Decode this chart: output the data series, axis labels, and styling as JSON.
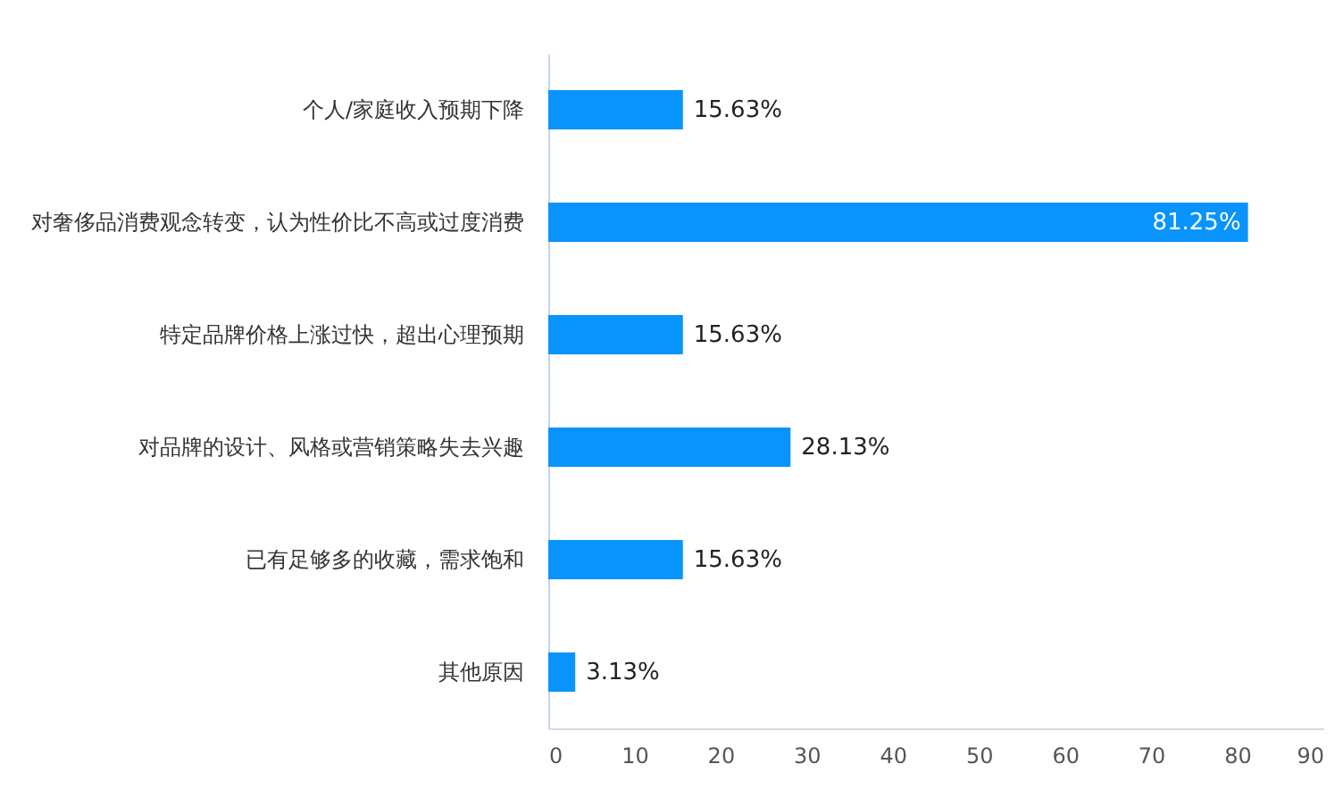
{
  "chart_data": {
    "type": "bar",
    "orientation": "horizontal",
    "categories": [
      "个人/家庭收入预期下降",
      "对奢侈品消费观念转变，认为性价比不高或过度消费",
      "特定品牌价格上涨过快，超出心理预期",
      "对品牌的设计、风格或营销策略失去兴趣",
      "已有足够多的收藏，需求饱和",
      "其他原因"
    ],
    "values": [
      15.63,
      81.25,
      15.63,
      28.13,
      15.63,
      3.13
    ],
    "value_labels": [
      "15.63%",
      "81.25%",
      "15.63%",
      "28.13%",
      "15.63%",
      "3.13%"
    ],
    "color": "#0894fc",
    "xlim": [
      0,
      90
    ],
    "xticks": [
      0,
      10,
      20,
      30,
      40,
      50,
      60,
      70,
      80,
      90
    ],
    "grid": false
  }
}
